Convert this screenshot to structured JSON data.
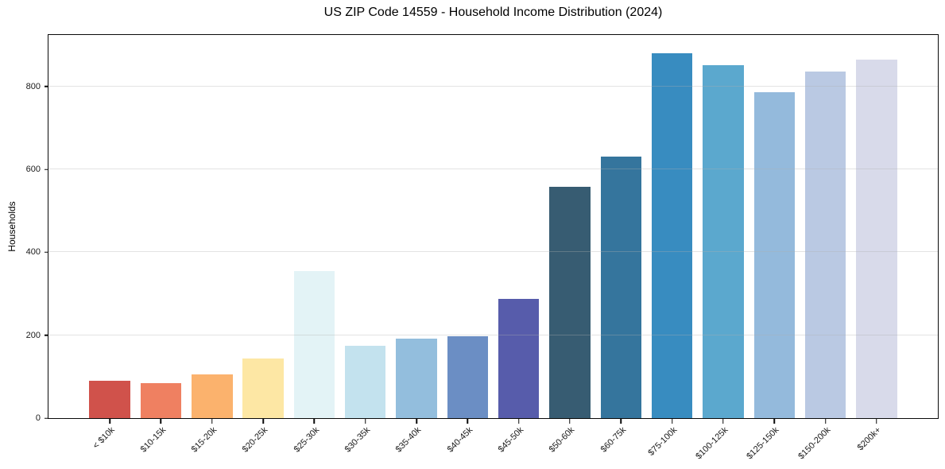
{
  "chart_data": {
    "type": "bar",
    "title": "US ZIP Code 14559 - Household Income Distribution (2024)",
    "xlabel": "",
    "ylabel": "Households",
    "ylim": [
      0,
      924
    ],
    "yticks": [
      0,
      200,
      400,
      600,
      800
    ],
    "grid": "horizontal gridlines at y ticks, faint gray, drawn above bars",
    "legend": "none",
    "categories": [
      "< $10k",
      "$10-15k",
      "$15-20k",
      "$20-25k",
      "$25-30k",
      "$30-35k",
      "$35-40k",
      "$40-45k",
      "$45-50k",
      "$50-60k",
      "$60-75k",
      "$75-100k",
      "$100-125k",
      "$125-150k",
      "$150-200k",
      "$200k+"
    ],
    "values": [
      91,
      84,
      106,
      144,
      355,
      175,
      191,
      198,
      288,
      557,
      631,
      880,
      852,
      786,
      836,
      864
    ],
    "bar_colors": [
      "#d0524b",
      "#ef8061",
      "#fbb26d",
      "#fde7a4",
      "#e3f3f6",
      "#c3e2ee",
      "#93bedd",
      "#6b8ec4",
      "#575cab",
      "#375c72",
      "#35759d",
      "#388cc0",
      "#5ba8ce",
      "#94badc",
      "#bac9e3",
      "#d8daea"
    ]
  },
  "colors": {
    "background": "#ffffff",
    "spine": "#0a0a0a",
    "grid": "#b0b0b0",
    "text": "#1a1a1a"
  }
}
